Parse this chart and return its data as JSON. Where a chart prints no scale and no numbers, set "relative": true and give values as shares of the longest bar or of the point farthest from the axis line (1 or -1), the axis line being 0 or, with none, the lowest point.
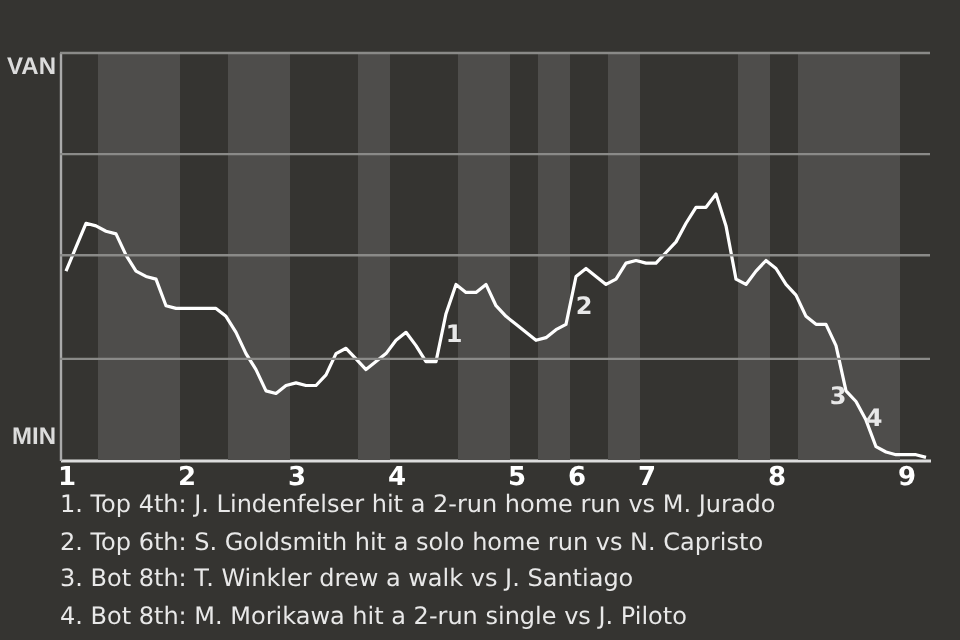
{
  "chart_data": {
    "type": "line",
    "relative": true,
    "categories": [
      "1",
      null,
      null,
      null,
      null,
      null,
      null,
      null,
      null,
      null,
      null,
      null,
      "2",
      null,
      null,
      null,
      null,
      null,
      null,
      null,
      null,
      null,
      null,
      "3",
      null,
      null,
      null,
      null,
      null,
      null,
      null,
      null,
      null,
      "4",
      null,
      null,
      null,
      null,
      null,
      null,
      null,
      null,
      null,
      null,
      null,
      "5",
      null,
      null,
      null,
      null,
      null,
      "6",
      null,
      null,
      null,
      null,
      null,
      null,
      "7",
      null,
      null,
      null,
      null,
      null,
      null,
      null,
      null,
      null,
      null,
      null,
      null,
      "8",
      null,
      null,
      null,
      null,
      null,
      null,
      null,
      null,
      null,
      null,
      null,
      null,
      "9",
      null,
      null
    ],
    "series": [
      {
        "color": "#ffffff",
        "values": [
          0.71,
          0.8,
          0.89,
          0.88,
          0.86,
          0.85,
          0.77,
          0.71,
          0.69,
          0.68,
          0.58,
          0.57,
          0.57,
          0.57,
          0.57,
          0.57,
          0.54,
          0.48,
          0.4,
          0.34,
          0.26,
          0.25,
          0.28,
          0.29,
          0.28,
          0.28,
          0.32,
          0.4,
          0.42,
          0.38,
          0.34,
          0.37,
          0.4,
          0.45,
          0.48,
          0.43,
          0.37,
          0.37,
          0.55,
          0.66,
          0.63,
          0.63,
          0.66,
          0.58,
          0.54,
          0.51,
          0.48,
          0.45,
          0.46,
          0.49,
          0.51,
          0.69,
          0.72,
          0.69,
          0.66,
          0.68,
          0.74,
          0.75,
          0.74,
          0.74,
          0.78,
          0.82,
          0.89,
          0.95,
          0.95,
          1,
          0.88,
          0.68,
          0.66,
          0.71,
          0.75,
          0.72,
          0.66,
          0.62,
          0.54,
          0.51,
          0.51,
          0.43,
          0.26,
          0.22,
          0.15,
          0.05,
          0.03,
          0.02,
          0.02,
          0.02,
          0.01
        ],
        "marker": "none"
      }
    ],
    "ref_lines": [
      {
        "axis": "y",
        "value": 0.38,
        "color": "#8a8a88"
      },
      {
        "axis": "y",
        "value": 0.77,
        "color": "#8a8a88"
      },
      {
        "axis": "y",
        "value": 1.15,
        "color": "#8a8a88"
      },
      {
        "axis": "y",
        "value": 1.53,
        "color": "#8a8a88"
      }
    ],
    "annotations": [
      "VAN",
      "MIN",
      "1",
      "2",
      "3",
      "4",
      "1. Top 4th: J. Lindenfelser hit a 2-run home run vs M. Jurado",
      "2. Top 6th: S. Goldsmith hit a solo home run vs N. Capristo",
      "3. Bot 8th: T. Winkler drew a walk vs J. Santiago",
      "4. Bot 8th: M. Morikawa hit a 2-run single vs J. Piloto"
    ]
  }
}
